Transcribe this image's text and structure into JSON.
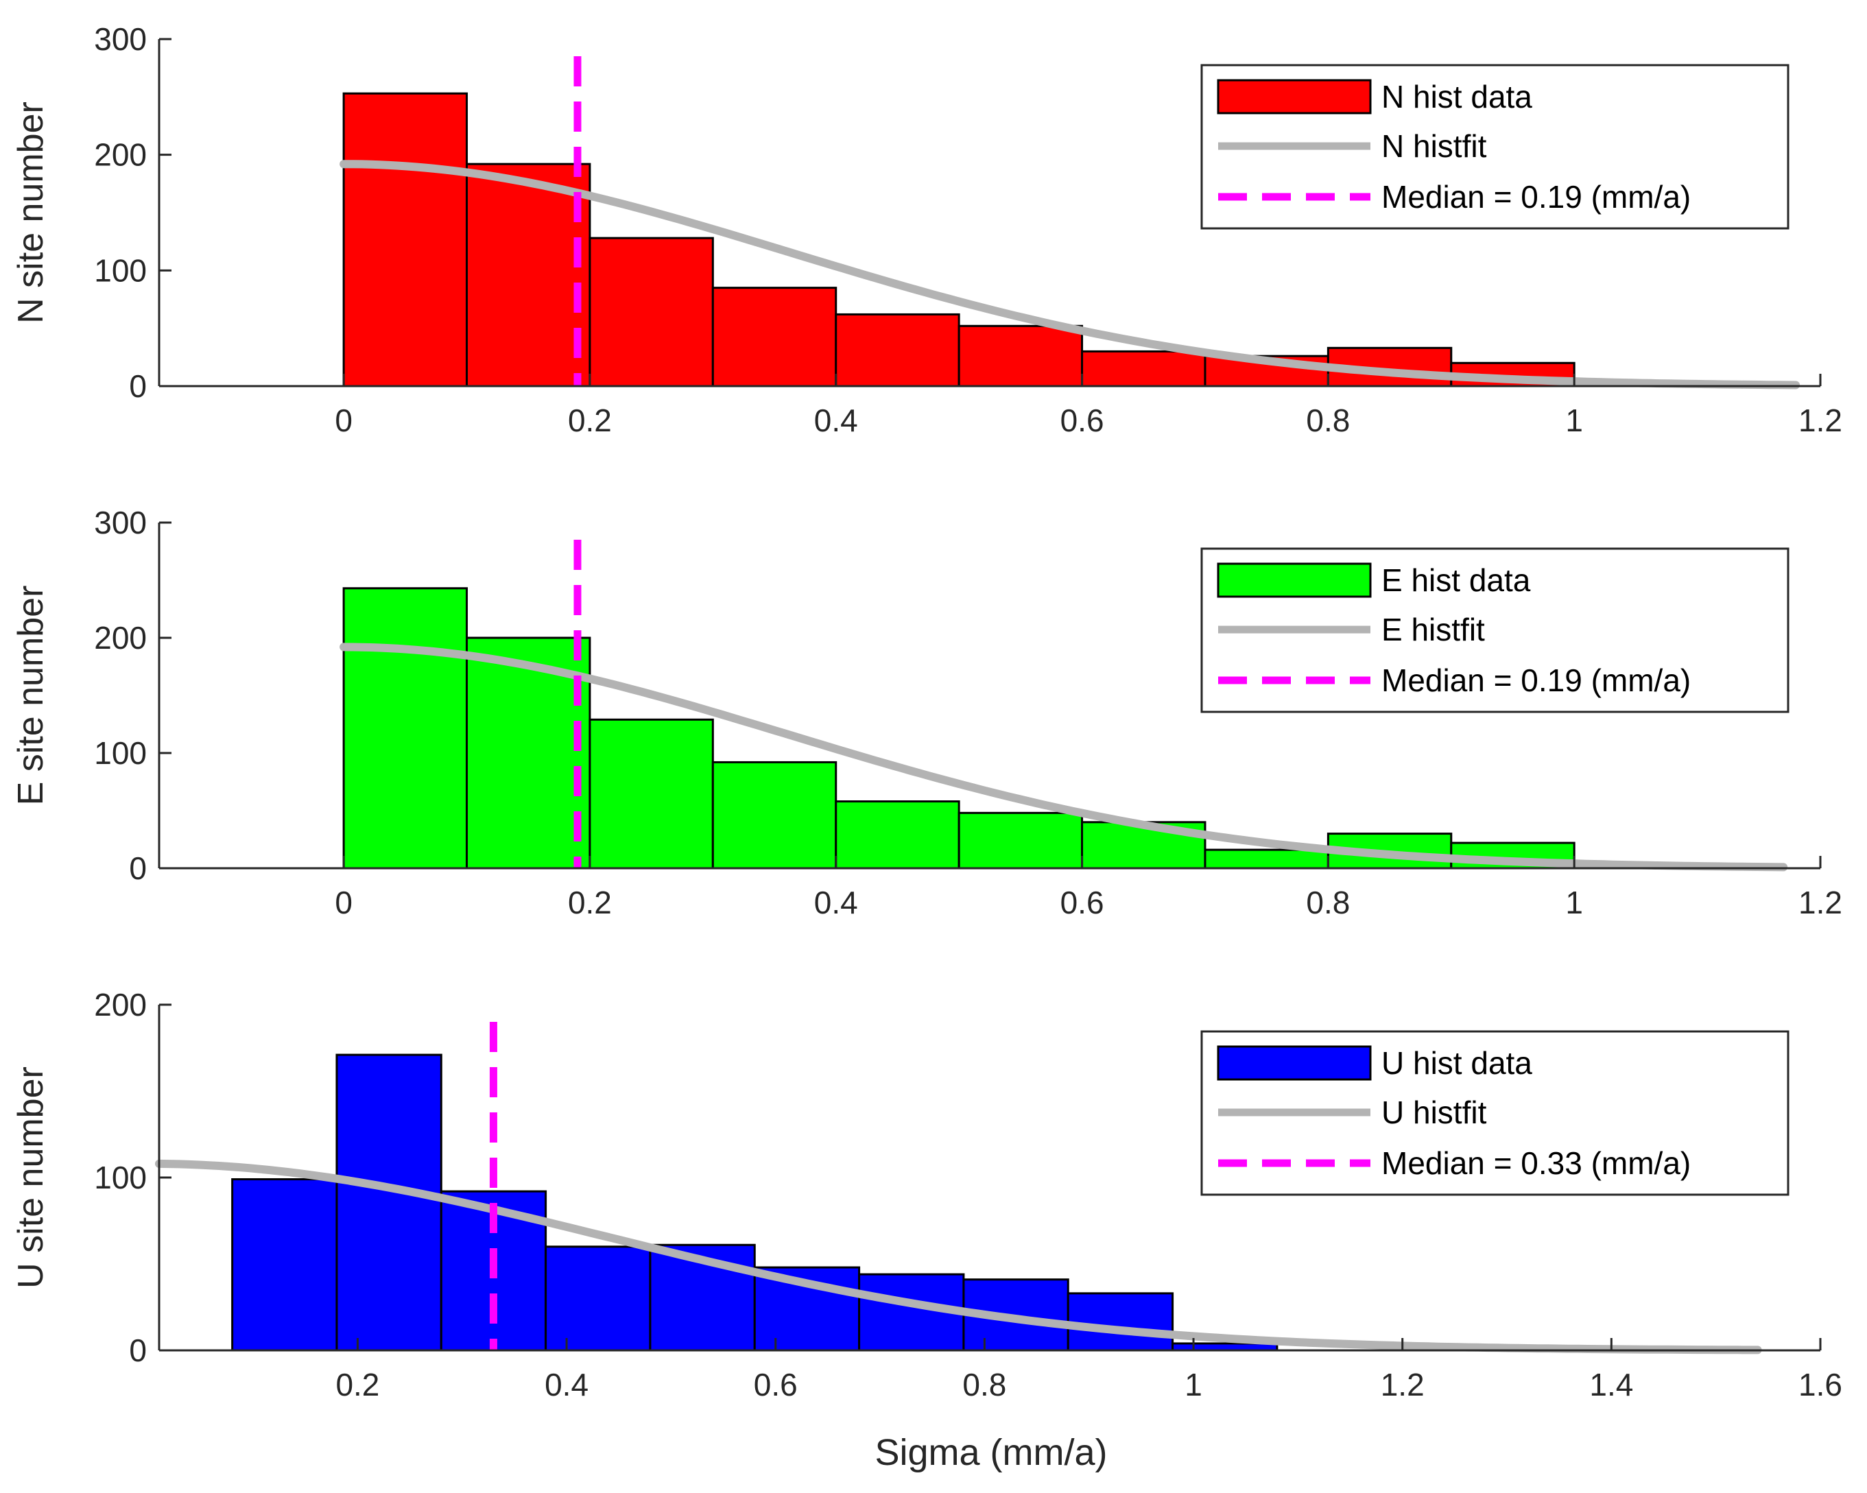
{
  "figure": {
    "xlabel": "Sigma (mm/a)"
  },
  "chart_data": [
    {
      "type": "bar",
      "subtype": "histogram",
      "panel": "N",
      "ylabel": "N site number",
      "xlim": [
        -0.15,
        1.2
      ],
      "ylim": [
        0,
        300
      ],
      "xticks": [
        0,
        0.2,
        0.4,
        0.6,
        0.8,
        1,
        1.2
      ],
      "xtick_labels": [
        "0",
        "0.2",
        "0.4",
        "0.6",
        "0.8",
        "1",
        "1.2"
      ],
      "yticks": [
        0,
        100,
        200,
        300
      ],
      "ytick_labels": [
        "0",
        "100",
        "200",
        "300"
      ],
      "bin_edges": [
        0,
        0.1,
        0.2,
        0.3,
        0.4,
        0.5,
        0.6,
        0.7,
        0.8,
        0.9,
        1.0
      ],
      "counts": [
        253,
        192,
        128,
        85,
        62,
        52,
        30,
        26,
        33,
        20
      ],
      "bar_color": "#ff0000",
      "fit": {
        "type": "half-normal",
        "peak": 192,
        "sigma": 0.36,
        "x_range": [
          0,
          1.18
        ],
        "color": "#b3b3b3"
      },
      "median": 0.19,
      "median_color": "#ff00ff",
      "legend": {
        "position": "top-right",
        "entries": [
          {
            "kind": "patch",
            "label": "N hist data"
          },
          {
            "kind": "line",
            "label": "N histfit"
          },
          {
            "kind": "dashed",
            "label": "Median = 0.19 (mm/a)"
          }
        ]
      }
    },
    {
      "type": "bar",
      "subtype": "histogram",
      "panel": "E",
      "ylabel": "E site number",
      "xlim": [
        -0.15,
        1.2
      ],
      "ylim": [
        0,
        300
      ],
      "xticks": [
        0,
        0.2,
        0.4,
        0.6,
        0.8,
        1,
        1.2
      ],
      "xtick_labels": [
        "0",
        "0.2",
        "0.4",
        "0.6",
        "0.8",
        "1",
        "1.2"
      ],
      "yticks": [
        0,
        100,
        200,
        300
      ],
      "ytick_labels": [
        "0",
        "100",
        "200",
        "300"
      ],
      "bin_edges": [
        0,
        0.1,
        0.2,
        0.3,
        0.4,
        0.5,
        0.6,
        0.7,
        0.8,
        0.9,
        1.0
      ],
      "counts": [
        243,
        200,
        129,
        92,
        58,
        48,
        40,
        16,
        30,
        22
      ],
      "bar_color": "#00ff00",
      "fit": {
        "type": "half-normal",
        "peak": 192,
        "sigma": 0.36,
        "x_range": [
          0,
          1.17
        ],
        "color": "#b3b3b3"
      },
      "median": 0.19,
      "median_color": "#ff00ff",
      "legend": {
        "position": "top-right",
        "entries": [
          {
            "kind": "patch",
            "label": "E hist data"
          },
          {
            "kind": "line",
            "label": "E histfit"
          },
          {
            "kind": "dashed",
            "label": "Median = 0.19 (mm/a)"
          }
        ]
      }
    },
    {
      "type": "bar",
      "subtype": "histogram",
      "panel": "U",
      "ylabel": "U site number",
      "xlim": [
        0.01,
        1.6
      ],
      "ylim": [
        0,
        200
      ],
      "xticks": [
        0.2,
        0.4,
        0.6,
        0.8,
        1,
        1.2,
        1.4,
        1.6
      ],
      "xtick_labels": [
        "0.2",
        "0.4",
        "0.6",
        "0.8",
        "1",
        "1.2",
        "1.4",
        "1.6"
      ],
      "yticks": [
        0,
        100,
        200
      ],
      "ytick_labels": [
        "0",
        "100",
        "200"
      ],
      "bin_edges": [
        0.08,
        0.18,
        0.28,
        0.38,
        0.48,
        0.58,
        0.68,
        0.78,
        0.88,
        0.98,
        1.08
      ],
      "counts": [
        99,
        171,
        92,
        60,
        61,
        48,
        44,
        41,
        33,
        4
      ],
      "bar_color": "#0000ff",
      "fit": {
        "type": "half-normal",
        "peak": 108,
        "sigma": 0.44,
        "x_range": [
          0.01,
          1.54
        ],
        "color": "#b3b3b3"
      },
      "median": 0.33,
      "median_color": "#ff00ff",
      "legend": {
        "position": "top-right",
        "entries": [
          {
            "kind": "patch",
            "label": "U hist data"
          },
          {
            "kind": "line",
            "label": "U histfit"
          },
          {
            "kind": "dashed",
            "label": "Median = 0.33 (mm/a)"
          }
        ]
      }
    }
  ]
}
